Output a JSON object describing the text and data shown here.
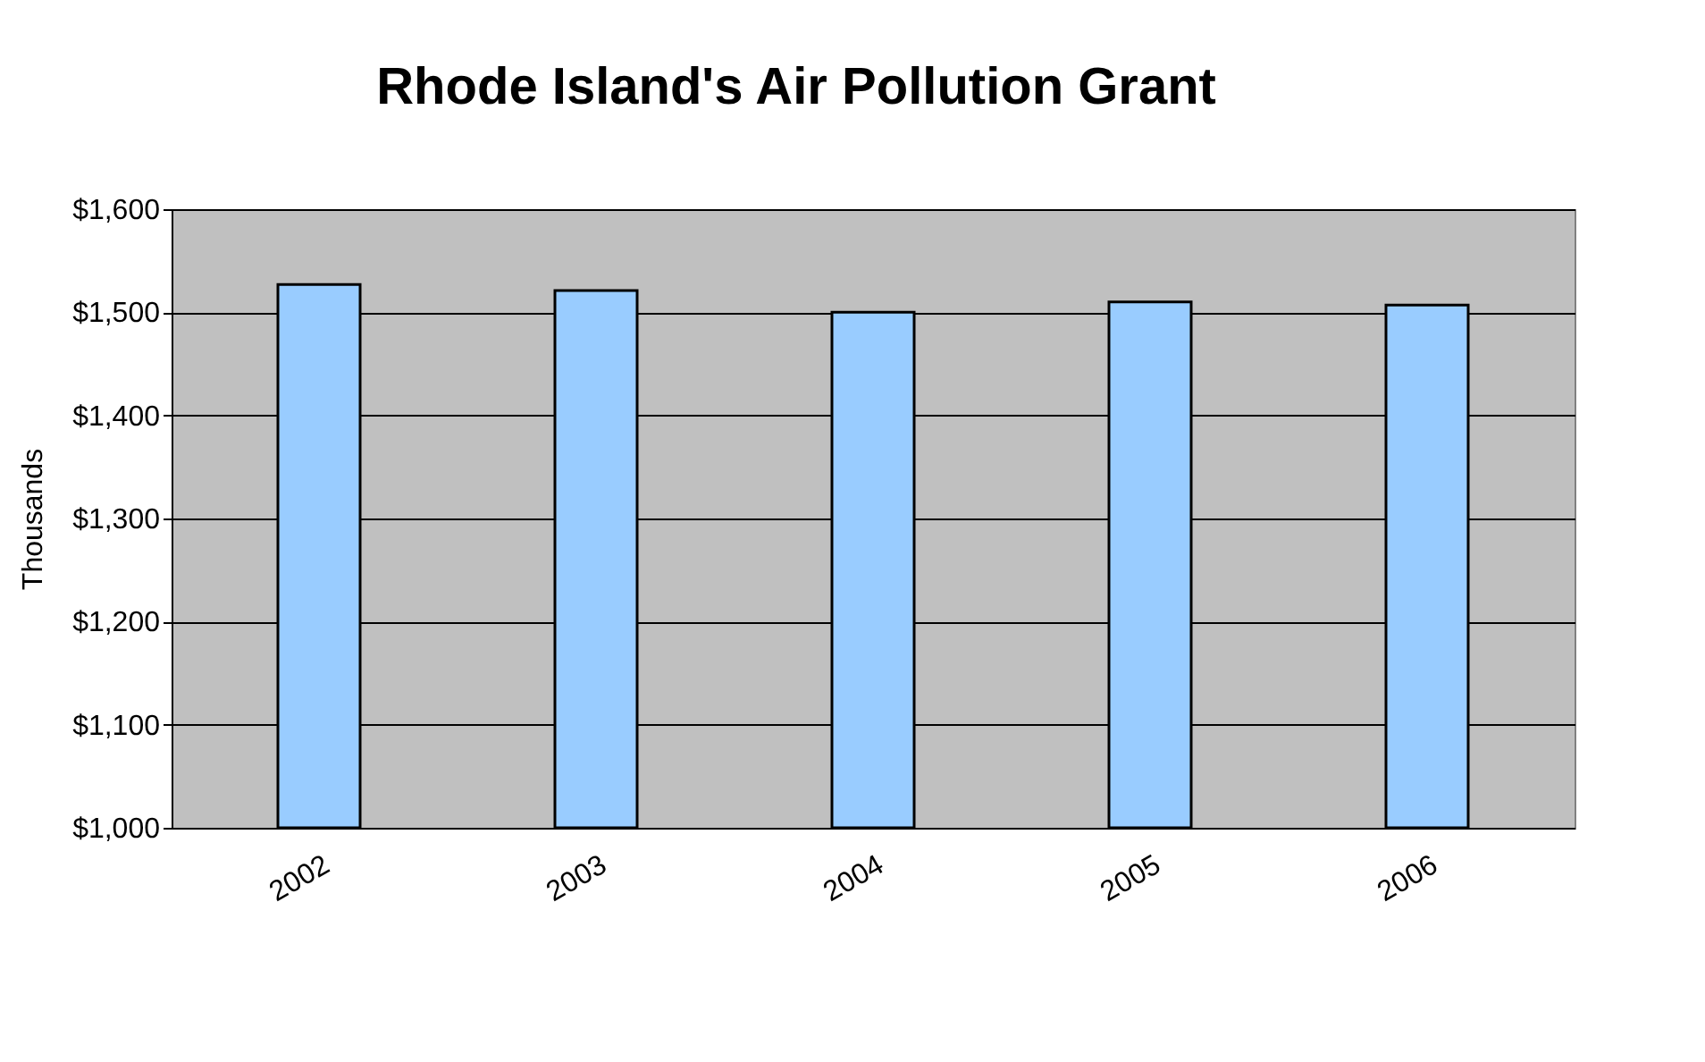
{
  "chart_data": {
    "type": "bar",
    "title": "Rhode Island's Air Pollution Grant",
    "ylabel": "Thousands",
    "categories": [
      "2002",
      "2003",
      "2004",
      "2005",
      "2006"
    ],
    "series": [
      {
        "color": "#99ccff",
        "values": [
          1527,
          1521,
          1500,
          1510,
          1507
        ]
      }
    ],
    "ylim": [
      1000,
      1600
    ],
    "yticks": [
      {
        "value": 1000,
        "label": "$1,000"
      },
      {
        "value": 1100,
        "label": "$1,100"
      },
      {
        "value": 1200,
        "label": "$1,200"
      },
      {
        "value": 1300,
        "label": "$1,300"
      },
      {
        "value": 1400,
        "label": "$1,400"
      },
      {
        "value": 1500,
        "label": "$1,500"
      },
      {
        "value": 1600,
        "label": "$1,600"
      }
    ],
    "grid": "y"
  }
}
